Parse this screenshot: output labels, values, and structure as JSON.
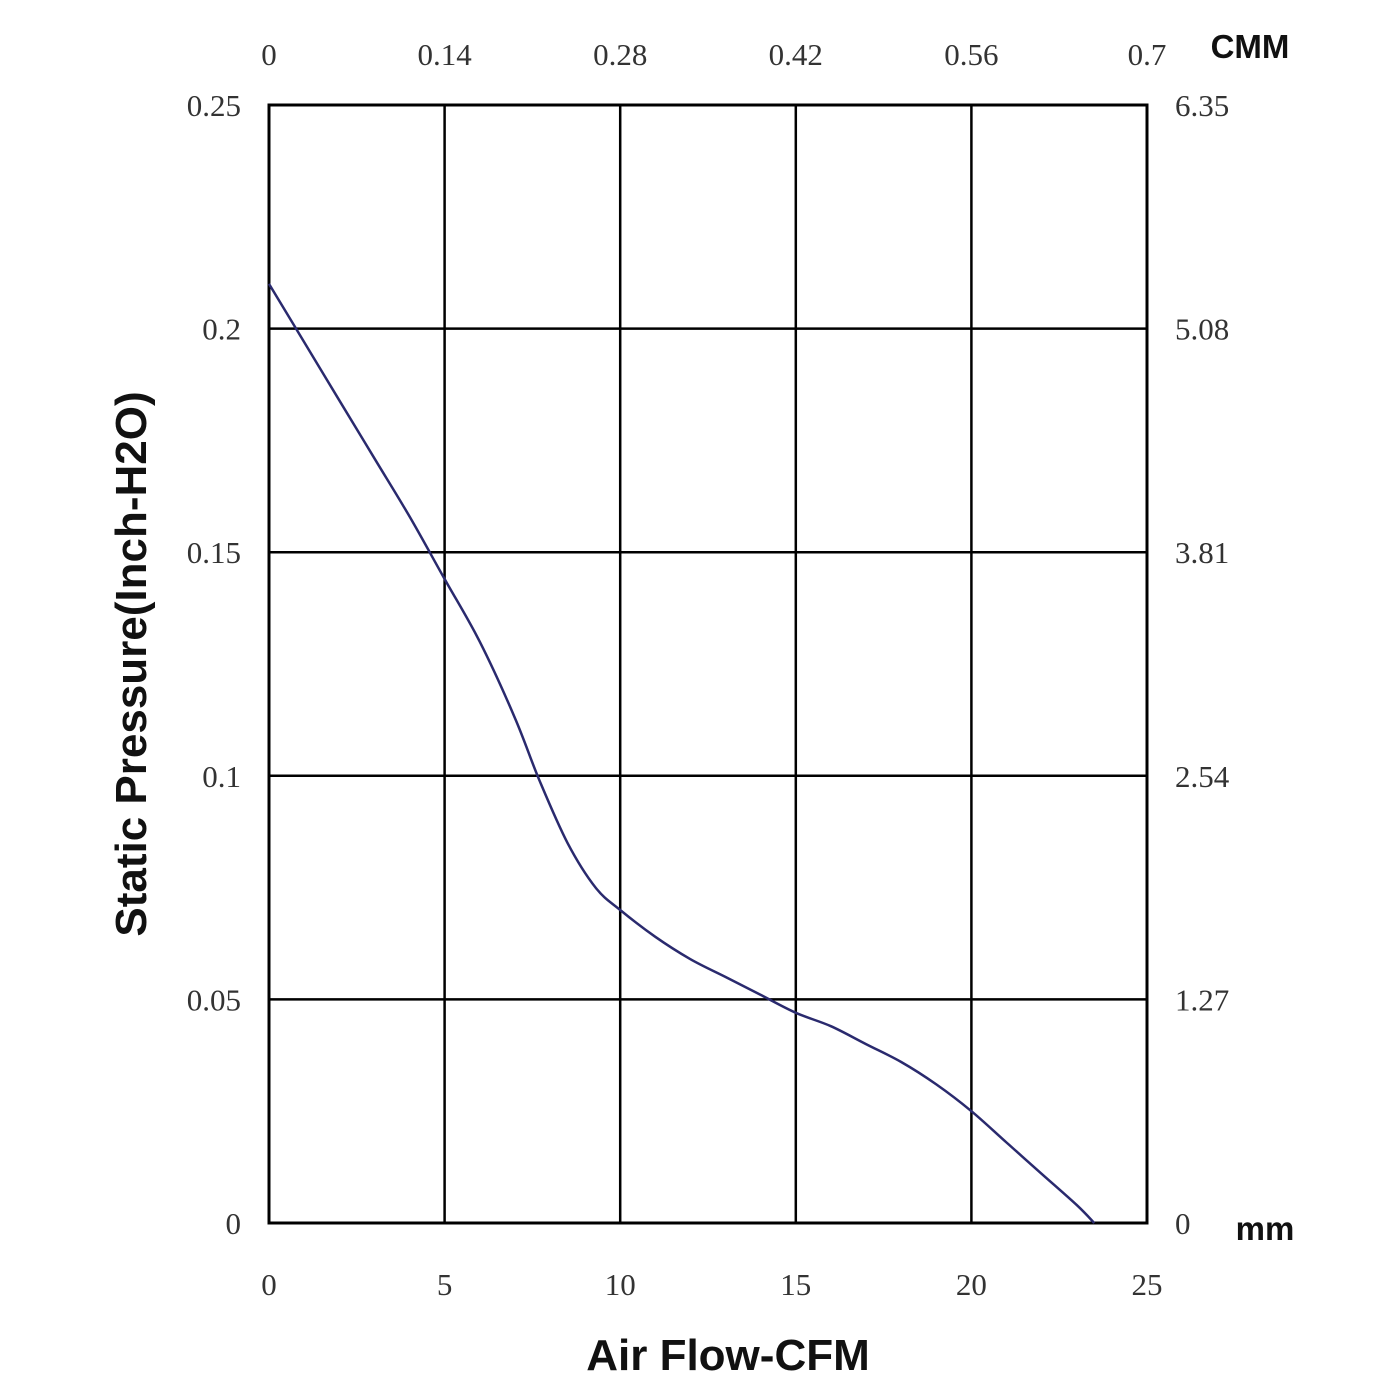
{
  "chart_data": {
    "type": "line",
    "xlabel": "Air Flow-CFM",
    "ylabel": "Static Pressure(Inch-H2O)",
    "xlim": [
      0,
      25
    ],
    "ylim": [
      0,
      0.25
    ],
    "x_ticks": [
      "0",
      "5",
      "10",
      "15",
      "20",
      "25"
    ],
    "y_ticks": [
      "0",
      "0.05",
      "0.1",
      "0.15",
      "0.2",
      "0.25"
    ],
    "top_axis": {
      "unit": "CMM",
      "ticks": [
        "0",
        "0.14",
        "0.28",
        "0.42",
        "0.56",
        "0.7"
      ]
    },
    "right_axis": {
      "unit": "mm",
      "ticks": [
        "0",
        "1.27",
        "2.54",
        "3.81",
        "5.08",
        "6.35"
      ]
    },
    "grid": true,
    "line_color": "#2a2a6e",
    "series": [
      {
        "x": [
          0,
          1,
          2,
          3,
          4,
          5,
          6,
          7,
          7.7,
          8.5,
          9.3,
          10,
          11,
          12,
          13,
          14,
          15,
          16,
          17,
          18,
          19,
          20,
          21,
          22,
          23,
          23.5
        ],
        "y": [
          0.21,
          0.197,
          0.184,
          0.171,
          0.158,
          0.144,
          0.13,
          0.113,
          0.099,
          0.085,
          0.075,
          0.07,
          0.064,
          0.059,
          0.055,
          0.051,
          0.047,
          0.044,
          0.04,
          0.036,
          0.031,
          0.025,
          0.018,
          0.011,
          0.004,
          0
        ]
      }
    ]
  }
}
